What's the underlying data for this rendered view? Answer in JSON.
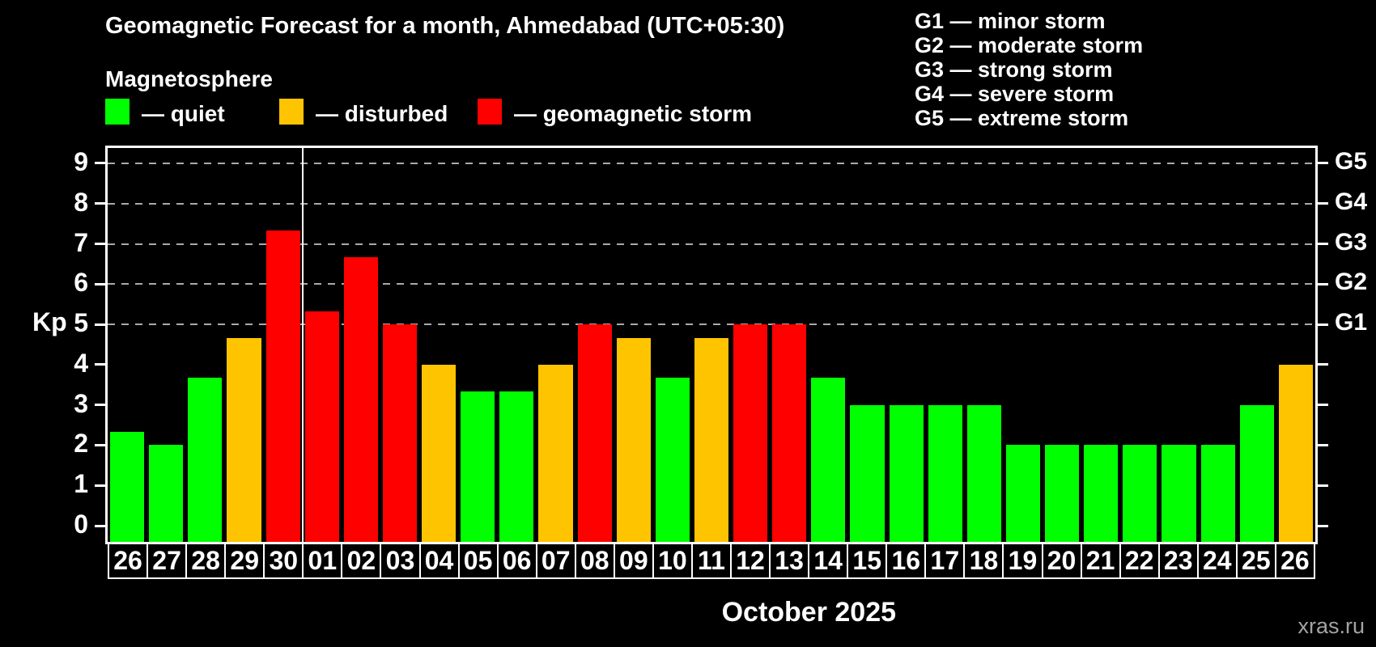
{
  "header": {
    "title": "Geomagnetic Forecast for a month, Ahmedabad (UTC+05:30)",
    "subtitle": "Magnetosphere"
  },
  "legend": {
    "items": [
      {
        "key": "quiet",
        "label": "— quiet"
      },
      {
        "key": "disturbed",
        "label": "— disturbed"
      },
      {
        "key": "storm",
        "label": "— geomagnetic storm"
      }
    ]
  },
  "g_scale": {
    "items": [
      "G1 — minor storm",
      "G2 — moderate storm",
      "G3 — strong storm",
      "G4 — severe storm",
      "G5 — extreme storm"
    ]
  },
  "footer": {
    "x_axis_title": "October 2025",
    "watermark": "xras.ru"
  },
  "colors": {
    "quiet": "#00ff00",
    "disturbed": "#ffc400",
    "storm": "#ff0000",
    "background": "#000000",
    "axis": "#ffffff",
    "grid": "#aaaaaa",
    "watermark": "#a3a3a3"
  },
  "chart_data": {
    "type": "bar",
    "title": "Geomagnetic Forecast for a month, Ahmedabad (UTC+05:30)",
    "xlabel": "October 2025",
    "ylabel": "Kp",
    "ylim": [
      0,
      9
    ],
    "yticks": [
      0,
      1,
      2,
      3,
      4,
      5,
      6,
      7,
      8,
      9
    ],
    "gridlines_at": [
      5,
      6,
      7,
      8,
      9
    ],
    "grid_style": "dashed horizontal lines at storm levels G1–G5 only",
    "legend_position": "top-left",
    "right_axis_labels": [
      {
        "kp": 5,
        "label": "G1"
      },
      {
        "kp": 6,
        "label": "G2"
      },
      {
        "kp": 7,
        "label": "G3"
      },
      {
        "kp": 8,
        "label": "G4"
      },
      {
        "kp": 9,
        "label": "G5"
      }
    ],
    "categories": [
      "26",
      "27",
      "28",
      "29",
      "30",
      "01",
      "02",
      "03",
      "04",
      "05",
      "06",
      "07",
      "08",
      "09",
      "10",
      "11",
      "12",
      "13",
      "14",
      "15",
      "16",
      "17",
      "18",
      "19",
      "20",
      "21",
      "22",
      "23",
      "24",
      "25",
      "26"
    ],
    "month_separator_after_index": 4,
    "series": [
      {
        "name": "Kp forecast",
        "values": [
          2.33,
          2.0,
          3.67,
          4.67,
          7.33,
          5.33,
          6.67,
          5.0,
          4.0,
          3.33,
          3.33,
          4.0,
          5.0,
          4.67,
          3.67,
          4.67,
          5.0,
          5.0,
          3.67,
          3.0,
          3.0,
          3.0,
          3.0,
          2.0,
          2.0,
          2.0,
          2.0,
          2.0,
          2.0,
          3.0,
          4.0
        ],
        "statuses": [
          "quiet",
          "quiet",
          "quiet",
          "disturbed",
          "storm",
          "storm",
          "storm",
          "storm",
          "disturbed",
          "quiet",
          "quiet",
          "disturbed",
          "storm",
          "disturbed",
          "quiet",
          "disturbed",
          "storm",
          "storm",
          "quiet",
          "quiet",
          "quiet",
          "quiet",
          "quiet",
          "quiet",
          "quiet",
          "quiet",
          "quiet",
          "quiet",
          "quiet",
          "quiet",
          "disturbed"
        ]
      }
    ]
  }
}
